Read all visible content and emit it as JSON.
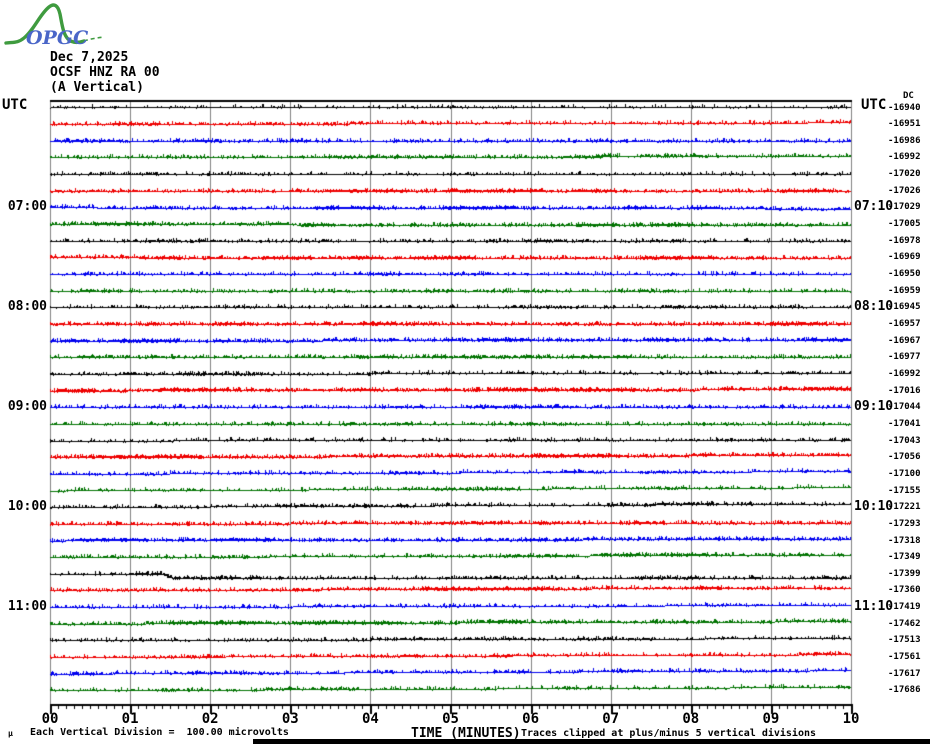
{
  "logo": {
    "text": "OPGC"
  },
  "header": {
    "date": "Dec 7,2025",
    "station": "OCSF HNZ RA 00",
    "component": "(A Vertical)"
  },
  "axes": {
    "left_title": "UTC",
    "right_title": "UTC",
    "dc_header": "DC",
    "left_hour_labels": [
      {
        "row": 7,
        "label": "07:00"
      },
      {
        "row": 13,
        "label": "08:00"
      },
      {
        "row": 19,
        "label": "09:00"
      },
      {
        "row": 25,
        "label": "10:00"
      },
      {
        "row": 31,
        "label": "11:00"
      }
    ],
    "right_hour_labels": [
      {
        "row": 7,
        "label": "07:10"
      },
      {
        "row": 13,
        "label": "08:10"
      },
      {
        "row": 19,
        "label": "09:10"
      },
      {
        "row": 25,
        "label": "10:10"
      },
      {
        "row": 31,
        "label": "11:10"
      }
    ],
    "x_tick_labels": [
      "00",
      "01",
      "02",
      "03",
      "04",
      "05",
      "06",
      "07",
      "08",
      "09",
      "10"
    ],
    "x_title": "TIME (MINUTES)"
  },
  "footer": {
    "mu_mark": "µ",
    "scale_note": "Each Vertical Division =  100.00 microvolts",
    "clip_note": "Traces clipped at plus/minus 5 vertical divisions"
  },
  "palette": {
    "black": "#000000",
    "red": "#ee0000",
    "blue": "#0000ee",
    "green": "#007300",
    "grid": "#808080",
    "frame_top": "#000000",
    "logo_green": "#3f9b3f",
    "logo_blue": "#4a66c8"
  },
  "chart_data": {
    "type": "line",
    "subtype": "helicorder-seismogram",
    "station": "OCSF HNZ RA 00",
    "component": "A Vertical",
    "date": "Dec 7,2025",
    "xlabel": "TIME (MINUTES)",
    "x_range_minutes": [
      0,
      10
    ],
    "minutes_per_trace": 10,
    "traces_per_hour": 6,
    "time_span_utc": [
      "06:00",
      "12:00"
    ],
    "vertical_division_microvolts": 100.0,
    "clip_divisions": 5,
    "grid": "vertical gray line each minute",
    "color_cycle": [
      "black",
      "red",
      "blue",
      "green"
    ],
    "traces": [
      {
        "start_utc": "06:00",
        "color": "black",
        "dc": -16940
      },
      {
        "start_utc": "06:10",
        "color": "red",
        "dc": -16951
      },
      {
        "start_utc": "06:20",
        "color": "blue",
        "dc": -16986
      },
      {
        "start_utc": "06:30",
        "color": "green",
        "dc": -16992
      },
      {
        "start_utc": "06:40",
        "color": "black",
        "dc": -17020
      },
      {
        "start_utc": "06:50",
        "color": "red",
        "dc": -17026
      },
      {
        "start_utc": "07:00",
        "color": "blue",
        "dc": -17029
      },
      {
        "start_utc": "07:10",
        "color": "green",
        "dc": -17005
      },
      {
        "start_utc": "07:20",
        "color": "black",
        "dc": -16978
      },
      {
        "start_utc": "07:30",
        "color": "red",
        "dc": -16969
      },
      {
        "start_utc": "07:40",
        "color": "blue",
        "dc": -16950
      },
      {
        "start_utc": "07:50",
        "color": "green",
        "dc": -16959
      },
      {
        "start_utc": "08:00",
        "color": "black",
        "dc": -16945
      },
      {
        "start_utc": "08:10",
        "color": "red",
        "dc": -16957
      },
      {
        "start_utc": "08:20",
        "color": "blue",
        "dc": -16967
      },
      {
        "start_utc": "08:30",
        "color": "green",
        "dc": -16977
      },
      {
        "start_utc": "08:40",
        "color": "black",
        "dc": -16992
      },
      {
        "start_utc": "08:50",
        "color": "red",
        "dc": -17016
      },
      {
        "start_utc": "09:00",
        "color": "blue",
        "dc": -17044
      },
      {
        "start_utc": "09:10",
        "color": "green",
        "dc": -17041
      },
      {
        "start_utc": "09:20",
        "color": "black",
        "dc": -17043
      },
      {
        "start_utc": "09:30",
        "color": "red",
        "dc": -17056
      },
      {
        "start_utc": "09:40",
        "color": "blue",
        "dc": -17100
      },
      {
        "start_utc": "09:50",
        "color": "green",
        "dc": -17155
      },
      {
        "start_utc": "10:00",
        "color": "black",
        "dc": -17221
      },
      {
        "start_utc": "10:10",
        "color": "red",
        "dc": -17293
      },
      {
        "start_utc": "10:20",
        "color": "blue",
        "dc": -17318
      },
      {
        "start_utc": "10:30",
        "color": "green",
        "dc": -17349
      },
      {
        "start_utc": "10:40",
        "color": "black",
        "dc": -17399
      },
      {
        "start_utc": "10:50",
        "color": "red",
        "dc": -17360
      },
      {
        "start_utc": "11:00",
        "color": "blue",
        "dc": -17419
      },
      {
        "start_utc": "11:10",
        "color": "green",
        "dc": -17462
      },
      {
        "start_utc": "11:20",
        "color": "black",
        "dc": -17513
      },
      {
        "start_utc": "11:30",
        "color": "red",
        "dc": -17561
      },
      {
        "start_utc": "11:40",
        "color": "blue",
        "dc": -17617
      },
      {
        "start_utc": "11:50",
        "color": "green",
        "dc": -17686
      }
    ],
    "events": [
      {
        "trace_start_utc": "10:40",
        "minute": 1.5,
        "description": "small baseline step down (~0.25 division) preceded by a brief noise burst"
      }
    ]
  }
}
